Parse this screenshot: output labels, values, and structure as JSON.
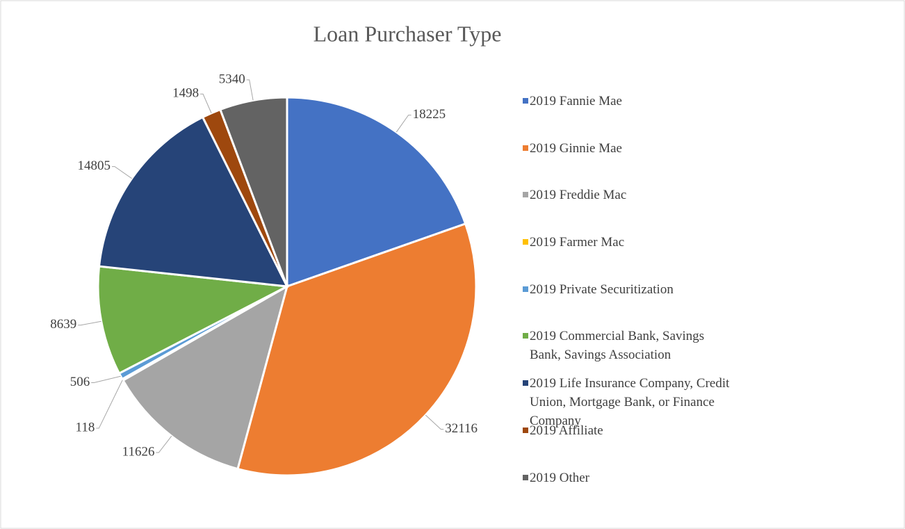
{
  "chart_data": {
    "type": "pie",
    "title": "Loan Purchaser Type",
    "categories": [
      "2019 Fannie Mae",
      "2019 Ginnie Mae",
      "2019 Freddie Mac",
      "2019 Farmer Mac",
      "2019 Private Securitization",
      "2019 Commercial Bank, Savings Bank, Savings Association",
      "2019 Life Insurance Company, Credit Union, Mortgage Bank, or Finance Company",
      "2019 Affiliate",
      "2019 Other"
    ],
    "values": [
      18225,
      32116,
      11626,
      118,
      506,
      8639,
      14805,
      1498,
      5340
    ],
    "colors": [
      "#4472c4",
      "#ed7d31",
      "#a5a5a5",
      "#ffc000",
      "#5b9bd5",
      "#70ad47",
      "#264478",
      "#9e480e",
      "#636363"
    ],
    "legend": "right"
  }
}
